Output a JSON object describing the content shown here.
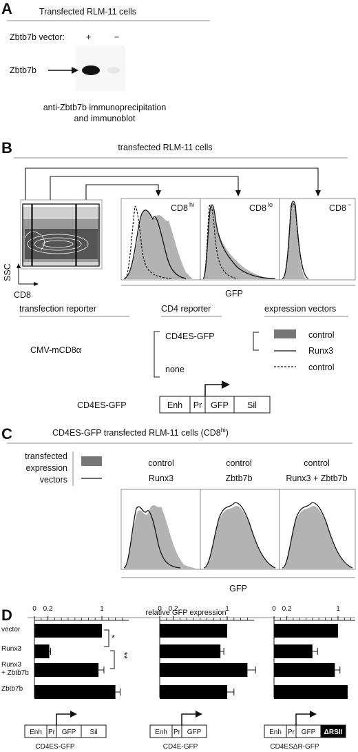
{
  "panelA": {
    "letter": "A",
    "title": "Transfected RLM-11 cells",
    "vector_label": "Zbtb7b vector:",
    "plus": "+",
    "minus": "−",
    "band_label": "Zbtb7b",
    "caption1": "anti-Zbtb7b immunoprecipitation",
    "caption2": "and immunoblot"
  },
  "panelB": {
    "letter": "B",
    "title": "transfected RLM-11 cells",
    "ssc": "SSC",
    "cd8": "CD8",
    "gfp": "GFP",
    "hist_labels": [
      "CD8",
      "CD8",
      "CD8"
    ],
    "hist_sups": [
      "hi",
      "lo",
      "−"
    ],
    "col1": "transfection reporter",
    "col2": "CD4 reporter",
    "col3": "expression vectors",
    "cmv": "CMV-mCD8α",
    "cd4es": "CD4ES-GFP",
    "none": "none",
    "leg_control1": "control",
    "leg_runx3": "Runx3",
    "leg_control2": "control",
    "construct_label": "CD4ES-GFP",
    "construct": [
      "Enh",
      "Pr",
      "GFP",
      "Sil"
    ]
  },
  "panelC": {
    "letter": "C",
    "title": "CD4ES-GFP transfected RLM-11 cells (CD8",
    "title_sup": "hi",
    "title_end": ")",
    "legend1": "transfected",
    "legend2": "expression",
    "legend3": "vectors",
    "cols": [
      {
        "top": "control",
        "bottom": "Runx3"
      },
      {
        "top": "control",
        "bottom": "Zbtb7b"
      },
      {
        "top": "control",
        "bottom": "Runx3 + Zbtb7b"
      }
    ],
    "gfp": "GFP"
  },
  "panelD": {
    "letter": "D",
    "axis_title": "relative GFP expression",
    "ticks": [
      "0",
      "0.2",
      "1"
    ],
    "rows": [
      "vector",
      "Runx3",
      "Runx3",
      "+ Zbtb7b",
      "Zbtb7b"
    ],
    "star1": "*",
    "star2": "**",
    "constructs": [
      {
        "name": "CD4ES-GFP",
        "parts": [
          "Enh",
          "Pr",
          "GFP",
          "Sil"
        ]
      },
      {
        "name": "CD4E-GFP",
        "parts": [
          "Enh",
          "Pr",
          "GFP"
        ]
      },
      {
        "name": "CD4ESΔR-GFP",
        "parts": [
          "Enh",
          "Pr",
          "GFP",
          "ΔRSII"
        ]
      }
    ]
  },
  "chart_data": {
    "type": "bar",
    "title": "relative GFP expression",
    "categories": [
      "vector",
      "Runx3",
      "Runx3 + Zbtb7b",
      "Zbtb7b"
    ],
    "series": [
      {
        "name": "CD4ES-GFP",
        "values": [
          1.0,
          0.22,
          0.95,
          1.2
        ],
        "errors": [
          0,
          0.02,
          0.08,
          0.07
        ]
      },
      {
        "name": "CD4E-GFP",
        "values": [
          1.0,
          0.9,
          1.3,
          1.0
        ],
        "errors": [
          0,
          0.05,
          0.12,
          0.1
        ]
      },
      {
        "name": "CD4ESΔR-GFP",
        "values": [
          1.0,
          0.6,
          0.95,
          1.15
        ],
        "errors": [
          0,
          0.08,
          0.08,
          0
        ]
      }
    ],
    "xlim": [
      0,
      1.4
    ]
  }
}
